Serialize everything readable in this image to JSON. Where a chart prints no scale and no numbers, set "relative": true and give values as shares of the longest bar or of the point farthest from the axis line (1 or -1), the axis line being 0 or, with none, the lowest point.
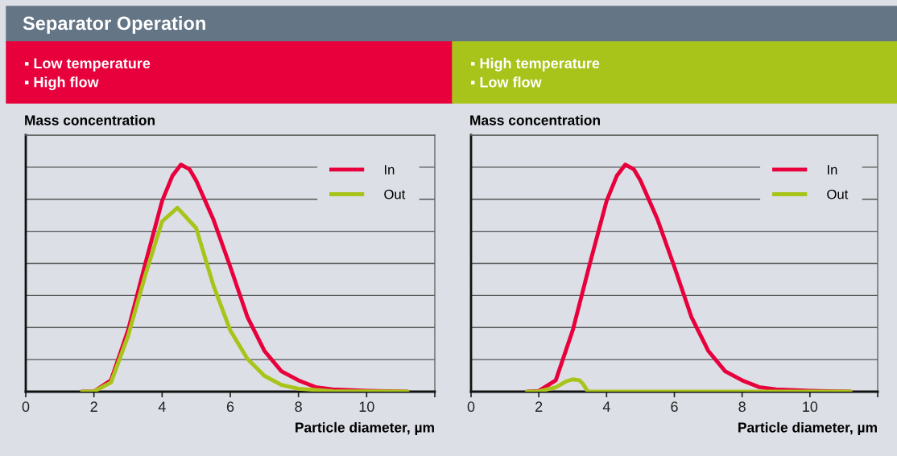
{
  "chart_data": [
    {
      "type": "line",
      "title": "Separator Operation",
      "subtitle": "▪ Low temperature\n▪ High flow",
      "ylabel": "Mass concentration",
      "xlabel": "Particle diameter, µm",
      "relative": true,
      "xlim": [
        0,
        12
      ],
      "xticks": [
        0,
        2,
        4,
        6,
        8,
        10,
        {
          "value": 12,
          "label": null
        }
      ],
      "tick_labels": "x",
      "grid": "y",
      "legend": "top right",
      "line_style": "solid",
      "series": [
        {
          "name": "In",
          "color": "#e8003d",
          "x": [
            1.65,
            2.0,
            2.5,
            3.0,
            3.5,
            4.0,
            4.3,
            4.55,
            4.8,
            5.0,
            5.5,
            6.0,
            6.5,
            7.0,
            7.5,
            8.0,
            8.5,
            9.0,
            10.0,
            11.2
          ],
          "values": [
            0,
            0.001,
            0.05,
            0.27,
            0.56,
            0.84,
            0.95,
            1,
            0.98,
            0.93,
            0.76,
            0.55,
            0.33,
            0.18,
            0.09,
            0.05,
            0.02,
            0.01,
            0.004,
            0
          ]
        },
        {
          "name": "Out",
          "color": "#a8c41a",
          "x": [
            1.65,
            2.0,
            2.5,
            3.0,
            3.5,
            4.0,
            4.45,
            5.0,
            5.5,
            6.0,
            6.5,
            7.0,
            7.5,
            8.0,
            9.0,
            11.2
          ],
          "values": [
            0,
            0.001,
            0.04,
            0.245,
            0.51,
            0.75,
            0.81,
            0.72,
            0.47,
            0.27,
            0.145,
            0.07,
            0.03,
            0.013,
            0.002,
            0
          ]
        }
      ]
    },
    {
      "type": "line",
      "subtitle": "▪ High temperature\n▪ Low flow",
      "ylabel": "Mass concentration",
      "xlabel": "Particle diameter, µm",
      "relative": true,
      "xlim": [
        0,
        12
      ],
      "xticks": [
        0,
        2,
        4,
        6,
        8,
        10,
        {
          "value": 12,
          "label": null
        }
      ],
      "tick_labels": "x",
      "grid": "y",
      "legend": "top right",
      "line_style": "solid",
      "series": [
        {
          "name": "In",
          "color": "#e8003d",
          "x": [
            1.65,
            2.0,
            2.5,
            3.0,
            3.5,
            4.0,
            4.3,
            4.55,
            4.8,
            5.0,
            5.5,
            6.0,
            6.5,
            7.0,
            7.5,
            8.0,
            8.5,
            9.0,
            10.0,
            11.2
          ],
          "values": [
            0,
            0.003,
            0.05,
            0.27,
            0.56,
            0.84,
            0.95,
            1,
            0.98,
            0.93,
            0.76,
            0.55,
            0.33,
            0.18,
            0.09,
            0.05,
            0.02,
            0.01,
            0.004,
            0
          ]
        },
        {
          "name": "Out",
          "color": "#a8c41a",
          "x": [
            1.65,
            2.0,
            2.5,
            2.8,
            3.0,
            3.2,
            3.3,
            3.45,
            5.0,
            8.0,
            11.2
          ],
          "values": [
            0,
            0.001,
            0.019,
            0.045,
            0.054,
            0.05,
            0.035,
            0,
            0,
            0,
            0
          ]
        }
      ]
    }
  ]
}
